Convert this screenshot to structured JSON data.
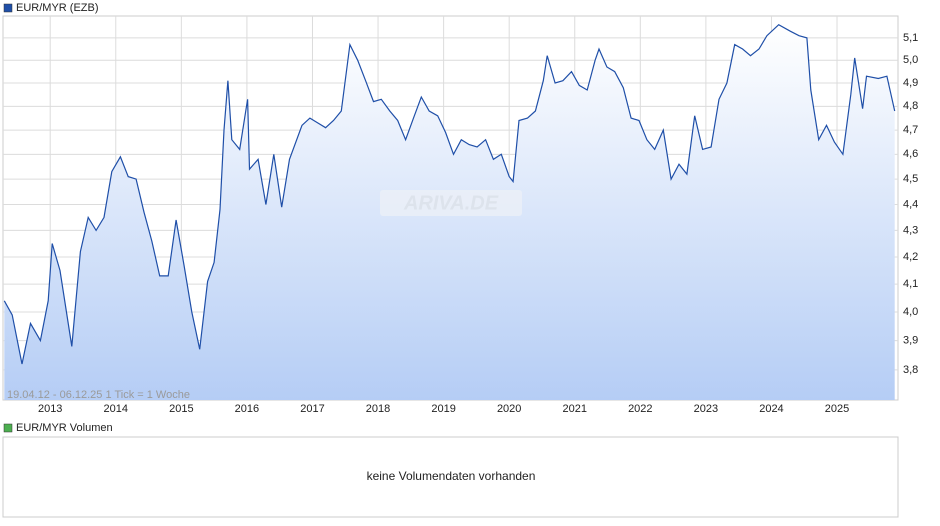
{
  "chart_data": {
    "type": "area",
    "log_scale": true,
    "grid": true,
    "range_note": "19.04.12 - 06.12.25   1 Tick = 1 Woche",
    "watermark": "ARIVA.DE",
    "xlim": [
      2012.28,
      2025.93
    ],
    "xticks": [
      2013,
      2014,
      2015,
      2016,
      2017,
      2018,
      2019,
      2020,
      2021,
      2022,
      2023,
      2024,
      2025
    ],
    "ylim": [
      3.7,
      5.2
    ],
    "yticks": [
      {
        "value": 3.8,
        "label": "3,8"
      },
      {
        "value": 3.9,
        "label": "3,9"
      },
      {
        "value": 4.0,
        "label": "4,0"
      },
      {
        "value": 4.1,
        "label": "4,1"
      },
      {
        "value": 4.2,
        "label": "4,2"
      },
      {
        "value": 4.3,
        "label": "4,3"
      },
      {
        "value": 4.4,
        "label": "4,4"
      },
      {
        "value": 4.5,
        "label": "4,5"
      },
      {
        "value": 4.6,
        "label": "4,6"
      },
      {
        "value": 4.7,
        "label": "4,7"
      },
      {
        "value": 4.8,
        "label": "4,8"
      },
      {
        "value": 4.9,
        "label": "4,9"
      },
      {
        "value": 5.0,
        "label": "5,0"
      },
      {
        "value": 5.1,
        "label": "5,1"
      }
    ],
    "x": [
      2012.3,
      2012.42,
      2012.57,
      2012.7,
      2012.85,
      2012.97,
      2013.03,
      2013.15,
      2013.33,
      2013.46,
      2013.58,
      2013.7,
      2013.82,
      2013.94,
      2014.07,
      2014.19,
      2014.31,
      2014.43,
      2014.55,
      2014.67,
      2014.8,
      2014.92,
      2015.04,
      2015.16,
      2015.28,
      2015.4,
      2015.5,
      2015.59,
      2015.65,
      2015.71,
      2015.77,
      2015.89,
      2016.01,
      2016.04,
      2016.17,
      2016.29,
      2016.41,
      2016.53,
      2016.65,
      2016.84,
      2016.96,
      2017.08,
      2017.2,
      2017.32,
      2017.44,
      2017.57,
      2017.69,
      2017.81,
      2017.93,
      2018.05,
      2018.18,
      2018.3,
      2018.42,
      2018.54,
      2018.66,
      2018.78,
      2018.91,
      2019.03,
      2019.15,
      2019.27,
      2019.39,
      2019.51,
      2019.64,
      2019.76,
      2019.88,
      2020.0,
      2020.06,
      2020.15,
      2020.28,
      2020.4,
      2020.52,
      2020.58,
      2020.7,
      2020.82,
      2020.95,
      2021.07,
      2021.19,
      2021.31,
      2021.37,
      2021.49,
      2021.61,
      2021.74,
      2021.86,
      2021.98,
      2022.1,
      2022.22,
      2022.35,
      2022.47,
      2022.59,
      2022.71,
      2022.83,
      2022.95,
      2023.08,
      2023.2,
      2023.32,
      2023.44,
      2023.56,
      2023.68,
      2023.81,
      2023.93,
      2024.11,
      2024.29,
      2024.42,
      2024.54,
      2024.6,
      2024.72,
      2024.84,
      2024.96,
      2025.09,
      2025.21,
      2025.27,
      2025.39,
      2025.45,
      2025.63,
      2025.76,
      2025.88
    ],
    "series": [
      {
        "name": "EUR/MYR (EZB)",
        "color": "#1f4fa8",
        "values": [
          4.04,
          3.99,
          3.82,
          3.96,
          3.9,
          4.04,
          4.25,
          4.15,
          3.88,
          4.22,
          4.35,
          4.3,
          4.35,
          4.53,
          4.59,
          4.51,
          4.5,
          4.37,
          4.26,
          4.13,
          4.13,
          4.34,
          4.17,
          4.0,
          3.87,
          4.11,
          4.18,
          4.38,
          4.7,
          4.91,
          4.66,
          4.62,
          4.83,
          4.54,
          4.58,
          4.4,
          4.6,
          4.39,
          4.58,
          4.72,
          4.75,
          4.73,
          4.71,
          4.74,
          4.78,
          5.07,
          5.0,
          4.91,
          4.82,
          4.83,
          4.78,
          4.74,
          4.66,
          4.75,
          4.84,
          4.78,
          4.76,
          4.69,
          4.6,
          4.66,
          4.64,
          4.63,
          4.66,
          4.58,
          4.6,
          4.51,
          4.49,
          4.74,
          4.75,
          4.78,
          4.91,
          5.02,
          4.9,
          4.91,
          4.95,
          4.89,
          4.87,
          5.0,
          5.05,
          4.97,
          4.95,
          4.88,
          4.75,
          4.74,
          4.66,
          4.62,
          4.7,
          4.5,
          4.56,
          4.52,
          4.76,
          4.62,
          4.63,
          4.83,
          4.9,
          5.07,
          5.05,
          5.02,
          5.05,
          5.11,
          5.16,
          5.13,
          5.11,
          5.1,
          4.87,
          4.66,
          4.72,
          4.65,
          4.6,
          4.85,
          5.01,
          4.79,
          4.93,
          4.92,
          4.93,
          4.78
        ]
      }
    ]
  },
  "volume_panel": {
    "title": "EUR/MYR Volumen",
    "color": "#4caf50",
    "message": "keine Volumendaten vorhanden"
  }
}
